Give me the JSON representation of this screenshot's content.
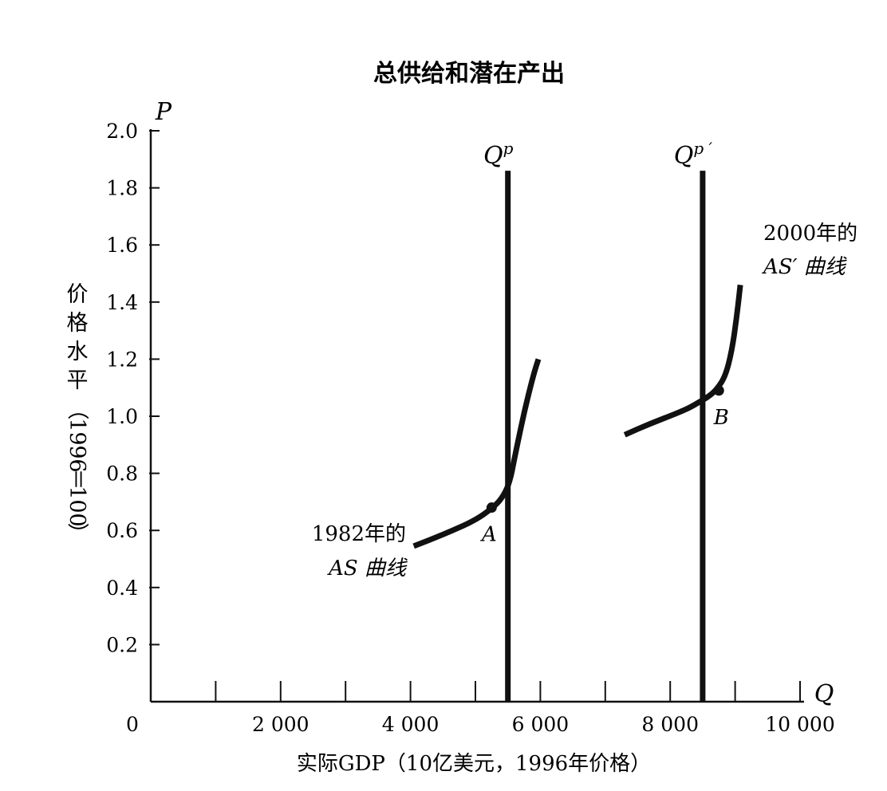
{
  "chart_data": {
    "type": "line",
    "title": "总供给和潜在产出",
    "xlabel": "实际GDP（10亿美元，1996年价格）",
    "ylabel": "价格水平（1996＝100）",
    "x_axis_letter": "Q",
    "y_axis_letter": "P",
    "xlim": [
      0,
      10000
    ],
    "ylim": [
      0,
      2.0
    ],
    "x_ticks": [
      {
        "value": 0,
        "label": "0"
      },
      {
        "value": 2000,
        "label": "2 000"
      },
      {
        "value": 4000,
        "label": "4 000"
      },
      {
        "value": 6000,
        "label": "6 000"
      },
      {
        "value": 8000,
        "label": "8 000"
      },
      {
        "value": 10000,
        "label": "10 000"
      }
    ],
    "x_minor_ticks": [
      1000,
      3000,
      5000,
      7000,
      9000
    ],
    "y_ticks": [
      {
        "value": 0.2,
        "label": "0.2"
      },
      {
        "value": 0.4,
        "label": "0.4"
      },
      {
        "value": 0.6,
        "label": "0.6"
      },
      {
        "value": 0.8,
        "label": "0.8"
      },
      {
        "value": 1.0,
        "label": "1.0"
      },
      {
        "value": 1.2,
        "label": "1.2"
      },
      {
        "value": 1.4,
        "label": "1.4"
      },
      {
        "value": 1.6,
        "label": "1.6"
      },
      {
        "value": 1.8,
        "label": "1.8"
      },
      {
        "value": 2.0,
        "label": "2.0"
      }
    ],
    "vertical_lines": [
      {
        "x": 5500,
        "y_top": 1.86,
        "label_base": "Q",
        "label_sup": "p"
      },
      {
        "x": 8500,
        "y_top": 1.86,
        "label_base": "Q",
        "label_sup": "p ′"
      }
    ],
    "series": [
      {
        "x": [
          4050,
          4500,
          5000,
          5300,
          5430,
          5530,
          5600,
          5700,
          5800,
          5900,
          5970
        ],
        "y": [
          0.545,
          0.585,
          0.635,
          0.685,
          0.72,
          0.77,
          0.85,
          0.96,
          1.06,
          1.15,
          1.2
        ],
        "label_lines": [
          "1982年的",
          "AS 曲线"
        ]
      },
      {
        "x": [
          7300,
          7700,
          8100,
          8300,
          8450,
          8600,
          8720,
          8850,
          8950,
          9020,
          9080
        ],
        "y": [
          0.935,
          0.975,
          1.01,
          1.03,
          1.05,
          1.07,
          1.095,
          1.14,
          1.23,
          1.34,
          1.46
        ],
        "label_lines": [
          "2000年的",
          "AS′ 曲线"
        ]
      }
    ],
    "points": [
      {
        "label": "A",
        "x": 5250,
        "y": 0.68
      },
      {
        "label": "B",
        "x": 8750,
        "y": 1.09
      }
    ],
    "grid": false,
    "legend": "none"
  }
}
